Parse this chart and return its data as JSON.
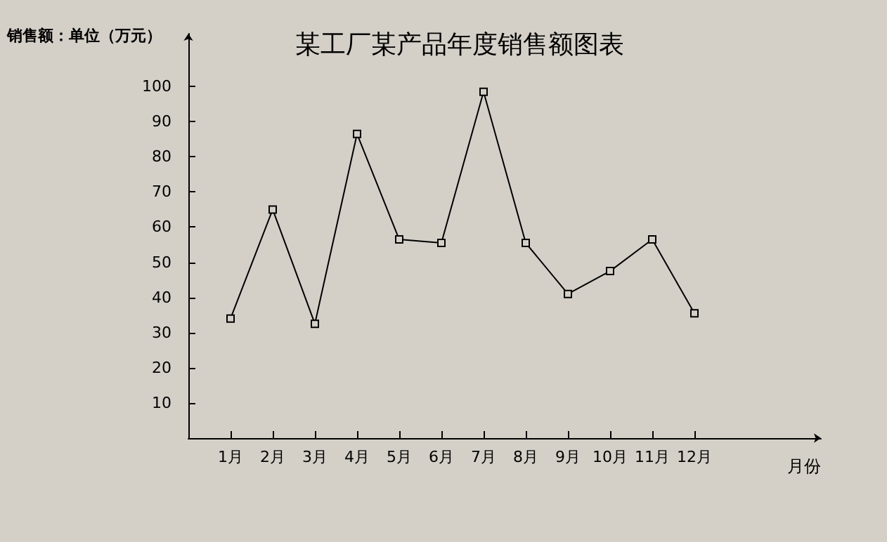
{
  "chart_data": {
    "type": "line",
    "title": "某工厂某产品年度销售额图表",
    "xlabel": "月份",
    "ylabel": "销售额：单位（万元）",
    "categories": [
      "1月",
      "2月",
      "3月",
      "4月",
      "5月",
      "6月",
      "7月",
      "8月",
      "9月",
      "10月",
      "11月",
      "12月"
    ],
    "series": [
      {
        "color": "#000000",
        "values": [
          34,
          65,
          32.5,
          86.5,
          56.5,
          55.5,
          98.5,
          55.5,
          41,
          47.5,
          56.5,
          35.5
        ]
      }
    ],
    "ylim": [
      0,
      115
    ],
    "yticks": [
      10,
      20,
      30,
      40,
      50,
      60,
      70,
      80,
      90,
      100
    ],
    "grid": false,
    "marker": "square",
    "line_style": "solid"
  }
}
